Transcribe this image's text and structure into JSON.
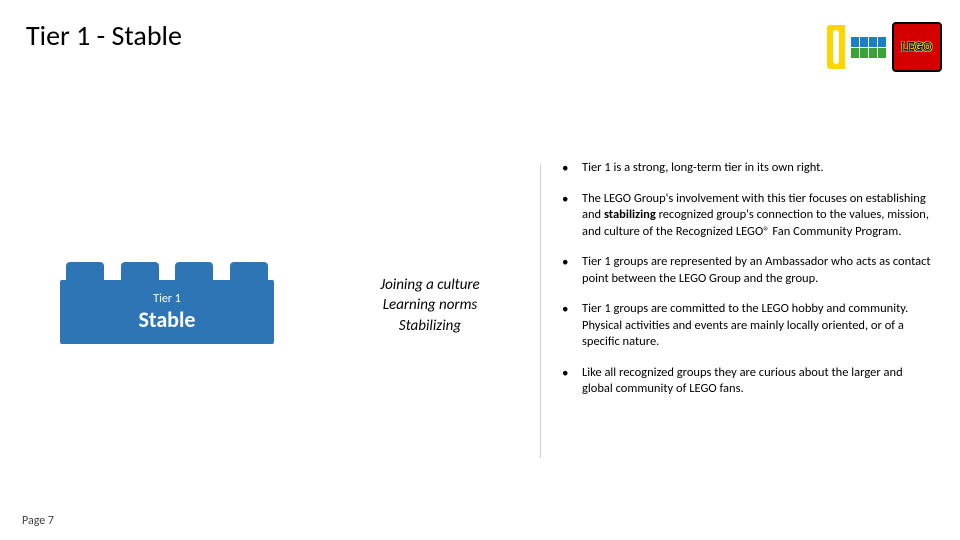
{
  "title": "Tier 1 - Stable",
  "logo": {
    "text": "LEGO"
  },
  "brick": {
    "color": "#2e75b6",
    "stud_count": 4,
    "tier_label": "Tier 1",
    "name": "Stable"
  },
  "center_lines": {
    "l1": "Joining a culture",
    "l2": "Learning norms",
    "l3": "Stabilizing"
  },
  "bullets": {
    "b1": "Tier 1 is a strong, long-term tier in its own right.",
    "b2_pre": "The LEGO Group's involvement with this tier focuses on establishing and ",
    "b2_bold": "stabilizing",
    "b2_post": " recognized group's connection to the values, mission, and culture of the Recognized LEGO® Fan Community Program.",
    "b3": "Tier 1 groups are represented by an Ambassador who acts as contact point between the LEGO Group and the group.",
    "b4": "Tier 1 groups are committed to the LEGO hobby and community. Physical activities and events are mainly locally oriented, or of a specific nature.",
    "b5": "Like all recognized groups they are curious about the larger and global community of LEGO fans."
  },
  "page_label": "Page 7",
  "style": {
    "title_fontsize": 28,
    "body_fontsize": 12.5,
    "center_fontsize": 15,
    "brick_small_fontsize": 12,
    "brick_big_fontsize": 22,
    "background": "#ffffff",
    "divider_color": "#cfcfcf",
    "logo_red": "#d40000",
    "logo_yellow": "#ffd500",
    "mini_blue": "#1a7fc4",
    "mini_green": "#3aa335"
  }
}
